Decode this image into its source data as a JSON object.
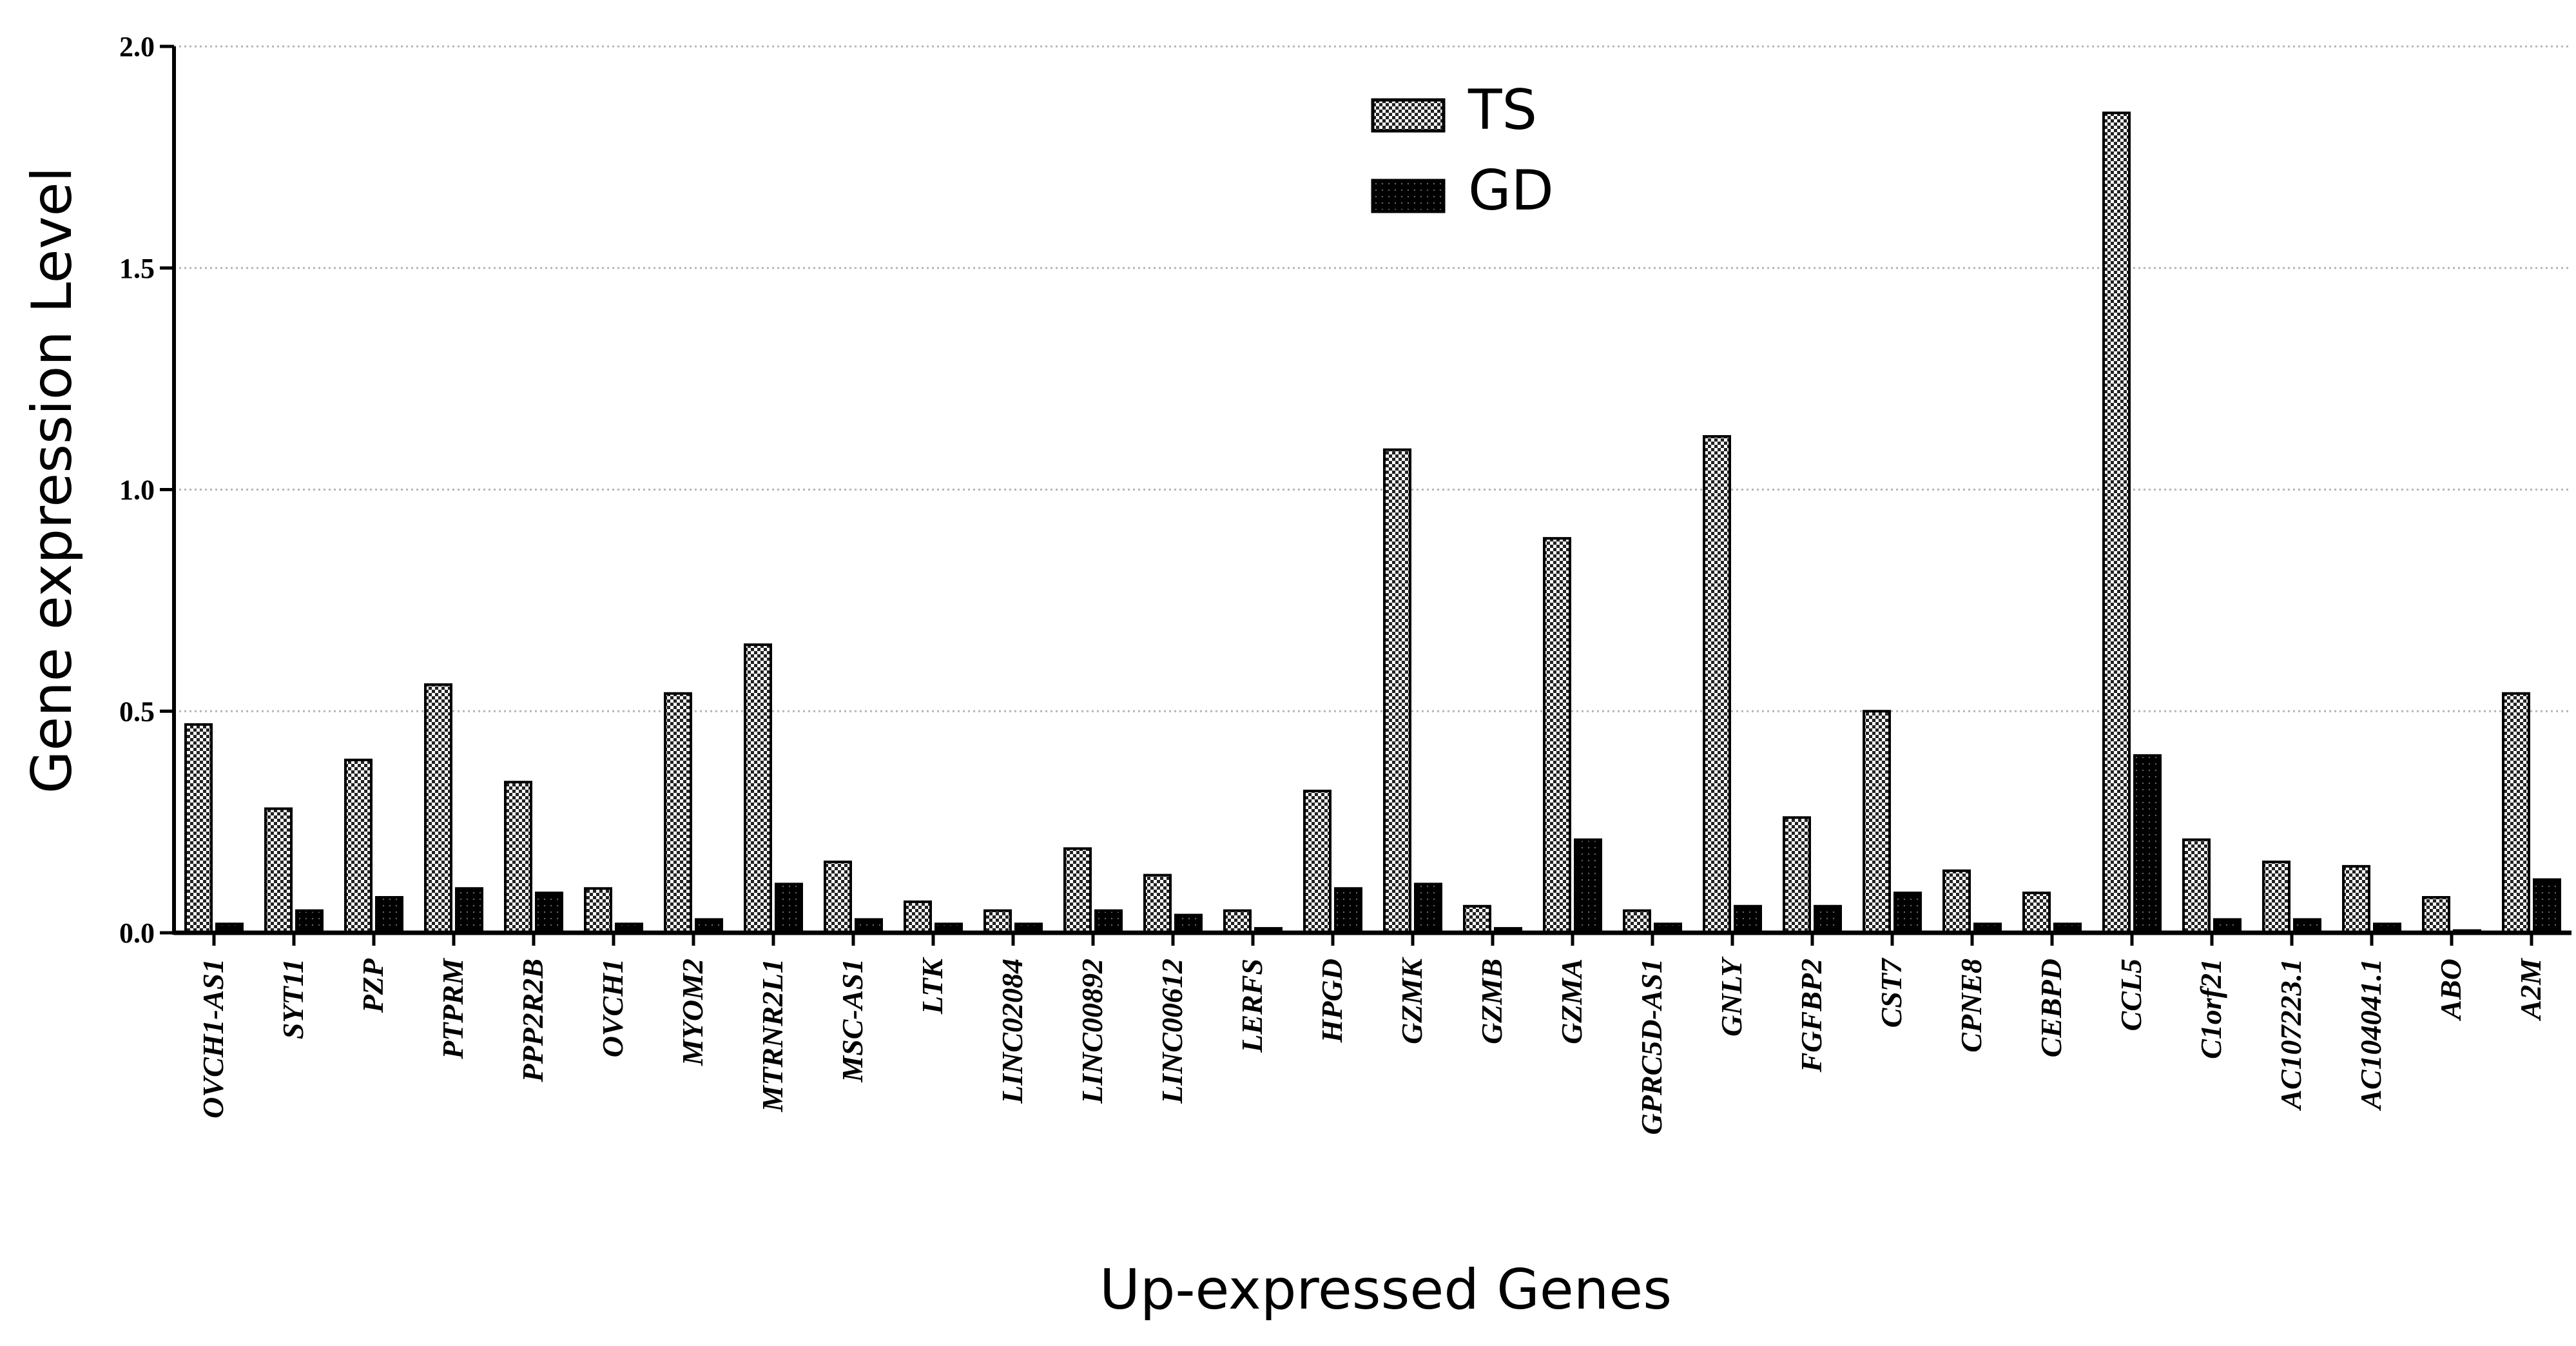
{
  "chart_data": {
    "type": "bar",
    "title": "",
    "xlabel": "Up-expressed Genes",
    "ylabel": "Gene expression Level",
    "ylim": [
      0,
      2.0
    ],
    "yticks": [
      "0.0",
      "0.5",
      "1.0",
      "1.5",
      "2.0"
    ],
    "grid": "horizontal dotted",
    "legend_position": "top-center",
    "categories": [
      "OVCH1-AS1",
      "SYT11",
      "PZP",
      "PTPRM",
      "PPP2R2B",
      "OVCH1",
      "MYOM2",
      "MTRNR2L1",
      "MSC-AS1",
      "LTK",
      "LINC02084",
      "LINC00892",
      "LINC00612",
      "LERFS",
      "HPGD",
      "GZMK",
      "GZMB",
      "GZMA",
      "GPRC5D-AS1",
      "GNLY",
      "FGFBP2",
      "CST7",
      "CPNE8",
      "CEBPD",
      "CCL5",
      "C1orf21",
      "AC107223.1",
      "AC104041.1",
      "ABO",
      "A2M"
    ],
    "series": [
      {
        "name": "TS",
        "pattern": "checker",
        "values": [
          0.47,
          0.28,
          0.39,
          0.56,
          0.34,
          0.1,
          0.54,
          0.65,
          0.16,
          0.07,
          0.05,
          0.19,
          0.13,
          0.05,
          0.32,
          1.09,
          0.06,
          0.89,
          0.05,
          1.12,
          0.26,
          0.5,
          0.14,
          0.09,
          1.85,
          0.21,
          0.16,
          0.15,
          0.08,
          0.54
        ]
      },
      {
        "name": "GD",
        "pattern": "dotted",
        "values": [
          0.02,
          0.05,
          0.08,
          0.1,
          0.09,
          0.02,
          0.03,
          0.11,
          0.03,
          0.02,
          0.02,
          0.05,
          0.04,
          0.01,
          0.1,
          0.11,
          0.01,
          0.21,
          0.02,
          0.06,
          0.06,
          0.09,
          0.02,
          0.02,
          0.4,
          0.03,
          0.03,
          0.02,
          0.005,
          0.12
        ]
      }
    ]
  }
}
